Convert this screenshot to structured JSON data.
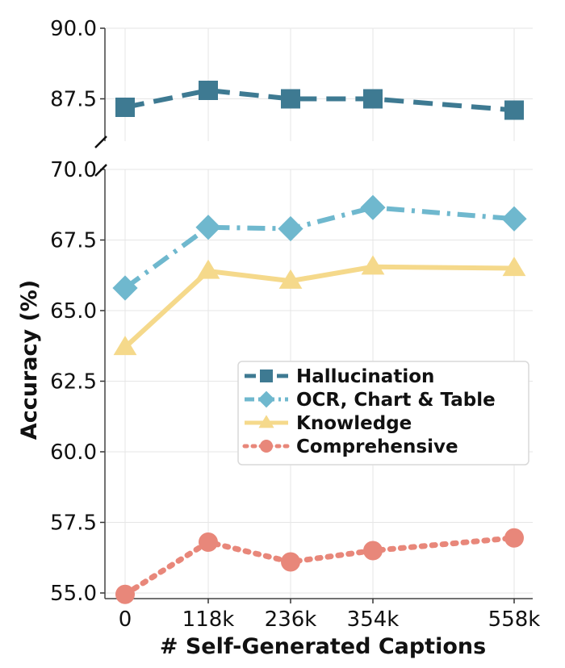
{
  "chart_data": {
    "type": "line",
    "broken_y_axis": true,
    "xlabel": "# Self-Generated Captions",
    "ylabel": "Accuracy (%)",
    "categories": [
      "0",
      "118k",
      "236k",
      "354k",
      "558k"
    ],
    "x_tick_labels": [
      "0",
      "118k",
      "236k",
      "354k",
      "558k"
    ],
    "upper_panel": {
      "ylim": [
        86.0,
        90.0
      ],
      "y_ticks": [
        "90.0",
        "87.5"
      ]
    },
    "lower_panel": {
      "ylim": [
        54.8,
        70.0
      ],
      "y_ticks": [
        "70.0",
        "67.5",
        "65.0",
        "62.5",
        "60.0",
        "57.5",
        "55.0"
      ]
    },
    "grid": true,
    "legend_position": "center-right",
    "series": [
      {
        "name": "Hallucination",
        "panel": "upper",
        "values": [
          87.2,
          87.8,
          87.5,
          87.5,
          87.1
        ],
        "color": "#3e7a92",
        "marker": "square",
        "line_style": "dashed"
      },
      {
        "name": "OCR, Chart & Table",
        "panel": "lower",
        "values": [
          65.8,
          67.95,
          67.9,
          68.65,
          68.25
        ],
        "color": "#6fb8ce",
        "marker": "diamond",
        "line_style": "dashdot"
      },
      {
        "name": "Knowledge",
        "panel": "lower",
        "values": [
          63.7,
          66.4,
          66.05,
          66.55,
          66.5
        ],
        "color": "#f5d98b",
        "marker": "triangle",
        "line_style": "solid"
      },
      {
        "name": "Comprehensive",
        "panel": "lower",
        "values": [
          54.95,
          56.8,
          56.1,
          56.5,
          56.95
        ],
        "color": "#e8877a",
        "marker": "circle",
        "line_style": "dotted"
      }
    ]
  }
}
